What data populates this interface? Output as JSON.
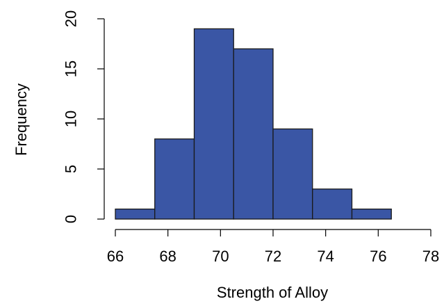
{
  "chart_data": {
    "type": "bar",
    "subtype": "histogram",
    "bins": [
      {
        "x0": 66.0,
        "x1": 67.5,
        "count": 1
      },
      {
        "x0": 67.5,
        "x1": 69.0,
        "count": 8
      },
      {
        "x0": 69.0,
        "x1": 70.5,
        "count": 19
      },
      {
        "x0": 70.5,
        "x1": 72.0,
        "count": 17
      },
      {
        "x0": 72.0,
        "x1": 73.5,
        "count": 9
      },
      {
        "x0": 73.5,
        "x1": 75.0,
        "count": 3
      },
      {
        "x0": 75.0,
        "x1": 76.5,
        "count": 1
      }
    ],
    "title": "",
    "xlabel": "Strength of Alloy",
    "ylabel": "Frequency",
    "xlim": [
      66,
      78
    ],
    "ylim": [
      0,
      20
    ],
    "xticks": [
      66,
      68,
      70,
      72,
      74,
      76,
      78
    ],
    "yticks": [
      0,
      5,
      10,
      15,
      20
    ],
    "grid": false,
    "bar_color": "#3a56a5",
    "edge_color": "#1a1a1a"
  }
}
